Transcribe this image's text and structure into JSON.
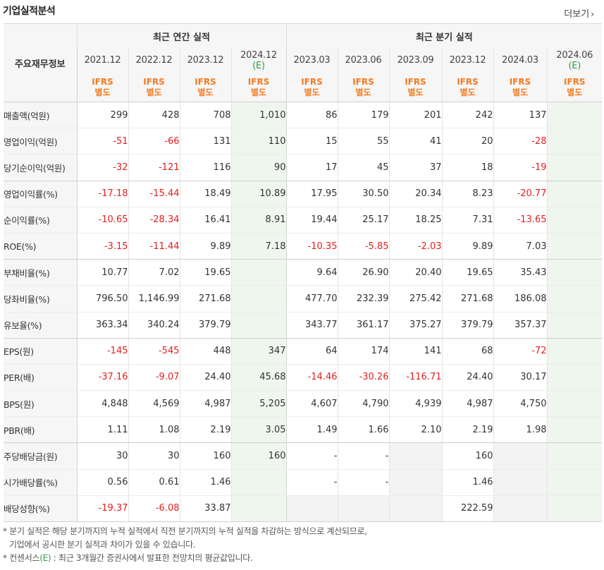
{
  "title": "기업실적분석",
  "more_label": "더보기",
  "more_arrow": "›",
  "corner_label": "주요재무정보",
  "groups": {
    "annual": "최근 연간 실적",
    "quarterly": "최근 분기 실적"
  },
  "periods": [
    {
      "label": "2021.12",
      "est": ""
    },
    {
      "label": "2022.12",
      "est": ""
    },
    {
      "label": "2023.12",
      "est": ""
    },
    {
      "label": "2024.12",
      "est": "(E)"
    },
    {
      "label": "2023.03",
      "est": ""
    },
    {
      "label": "2023.06",
      "est": ""
    },
    {
      "label": "2023.09",
      "est": ""
    },
    {
      "label": "2023.12",
      "est": ""
    },
    {
      "label": "2024.03",
      "est": ""
    },
    {
      "label": "2024.06",
      "est": "(E)"
    }
  ],
  "ifrs_line1": "IFRS",
  "ifrs_line2": "별도",
  "rows": [
    {
      "label": "매출액(억원)",
      "values": [
        "299",
        "428",
        "708",
        "1,010",
        "86",
        "179",
        "201",
        "242",
        "137",
        ""
      ]
    },
    {
      "label": "영업이익(억원)",
      "values": [
        "-51",
        "-66",
        "131",
        "110",
        "15",
        "55",
        "41",
        "20",
        "-28",
        ""
      ]
    },
    {
      "label": "당기순이익(억원)",
      "values": [
        "-32",
        "-121",
        "116",
        "90",
        "17",
        "45",
        "37",
        "18",
        "-19",
        ""
      ]
    },
    {
      "label": "영업이익률(%)",
      "values": [
        "-17.18",
        "-15.44",
        "18.49",
        "10.89",
        "17.95",
        "30.50",
        "20.34",
        "8.23",
        "-20.77",
        ""
      ]
    },
    {
      "label": "순이익률(%)",
      "values": [
        "-10.65",
        "-28.34",
        "16.41",
        "8.91",
        "19.44",
        "25.17",
        "18.25",
        "7.31",
        "-13.65",
        ""
      ]
    },
    {
      "label": "ROE(%)",
      "values": [
        "-3.15",
        "-11.44",
        "9.89",
        "7.18",
        "-10.35",
        "-5.85",
        "-2.03",
        "9.89",
        "7.03",
        ""
      ]
    },
    {
      "label": "부채비율(%)",
      "values": [
        "10.77",
        "7.02",
        "19.65",
        "",
        "9.64",
        "26.90",
        "20.40",
        "19.65",
        "35.43",
        ""
      ]
    },
    {
      "label": "당좌비율(%)",
      "values": [
        "796.50",
        "1,146.99",
        "271.68",
        "",
        "477.70",
        "232.39",
        "275.42",
        "271.68",
        "186.08",
        ""
      ]
    },
    {
      "label": "유보율(%)",
      "values": [
        "363.34",
        "340.24",
        "379.79",
        "",
        "343.77",
        "361.17",
        "375.27",
        "379.79",
        "357.37",
        ""
      ]
    },
    {
      "label": "EPS(원)",
      "values": [
        "-145",
        "-545",
        "448",
        "347",
        "64",
        "174",
        "141",
        "68",
        "-72",
        ""
      ]
    },
    {
      "label": "PER(배)",
      "values": [
        "-37.16",
        "-9.07",
        "24.40",
        "45.68",
        "-14.46",
        "-30.26",
        "-116.71",
        "24.40",
        "30.17",
        ""
      ]
    },
    {
      "label": "BPS(원)",
      "values": [
        "4,848",
        "4,569",
        "4,987",
        "5,205",
        "4,607",
        "4,790",
        "4,939",
        "4,987",
        "4,750",
        ""
      ]
    },
    {
      "label": "PBR(배)",
      "values": [
        "1.11",
        "1.08",
        "2.19",
        "3.05",
        "1.49",
        "1.66",
        "2.10",
        "2.19",
        "1.98",
        ""
      ]
    },
    {
      "label": "주당배당금(원)",
      "values": [
        "30",
        "30",
        "160",
        "160",
        "-",
        "-",
        "",
        "160",
        "",
        ""
      ]
    },
    {
      "label": "시가배당률(%)",
      "values": [
        "0.56",
        "0.61",
        "1.46",
        "",
        "-",
        "-",
        "",
        "1.46",
        "",
        ""
      ]
    },
    {
      "label": "배당성향(%)",
      "values": [
        "-19.37",
        "-6.08",
        "33.87",
        "",
        "",
        "",
        "",
        "222.59",
        "",
        ""
      ]
    }
  ],
  "notes": {
    "line1": "* 분기 실적은 해당 분기까지의 누적 실적에서 직전 분기까지의 누적 실적을 차감하는 방식으로 계산되므로,",
    "line2": "기업에서 공시한 분기 실적과 차이가 있을 수 있습니다.",
    "line3_pre": "* 컨센서스",
    "line3_e": "(E)",
    "line3_post": " : 최근 3개월간 증권사에서 발표한 전망치의 평균값입니다."
  }
}
